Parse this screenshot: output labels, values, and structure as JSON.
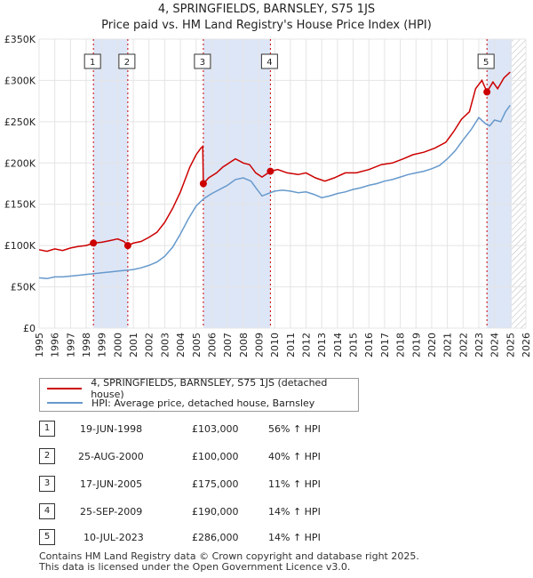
{
  "title_line1": "4, SPRINGFIELDS, BARNSLEY, S75 1JS",
  "title_line2": "Price paid vs. HM Land Registry's House Price Index (HPI)",
  "colors": {
    "price": "#cc0000",
    "hpi": "#6699cc",
    "shade": "#dde6f7",
    "hatch": "#c0c0c0",
    "grid": "#e4e4e4"
  },
  "chart_data": {
    "type": "line",
    "title": "Price paid vs. HM Land Registry's House Price Index (HPI)",
    "xlim": [
      1995,
      2026
    ],
    "ylim": [
      0,
      350000
    ],
    "x_ticks": [
      "1995",
      "1996",
      "1997",
      "1998",
      "1999",
      "2000",
      "2001",
      "2002",
      "2003",
      "2004",
      "2005",
      "2006",
      "2007",
      "2008",
      "2009",
      "2010",
      "2011",
      "2012",
      "2013",
      "2014",
      "2015",
      "2016",
      "2017",
      "2018",
      "2019",
      "2020",
      "2021",
      "2022",
      "2023",
      "2024",
      "2025",
      "2026"
    ],
    "y_ticks": [
      {
        "value": 0,
        "label": "£0"
      },
      {
        "value": 50000,
        "label": "£50K"
      },
      {
        "value": 100000,
        "label": "£100K"
      },
      {
        "value": 150000,
        "label": "£150K"
      },
      {
        "value": 200000,
        "label": "£200K"
      },
      {
        "value": 250000,
        "label": "£250K"
      },
      {
        "value": 300000,
        "label": "£300K"
      },
      {
        "value": 350000,
        "label": "£350K"
      }
    ],
    "series": [
      {
        "name": "4, SPRINGFIELDS, BARNSLEY, S75 1JS (detached house)",
        "color": "#cc0000",
        "points": [
          [
            1995.0,
            95000
          ],
          [
            1995.5,
            93000
          ],
          [
            1996.0,
            96000
          ],
          [
            1996.5,
            94000
          ],
          [
            1997.0,
            97000
          ],
          [
            1997.5,
            99000
          ],
          [
            1998.0,
            100000
          ],
          [
            1998.46,
            103000
          ],
          [
            1999.0,
            104000
          ],
          [
            1999.5,
            106000
          ],
          [
            2000.0,
            108000
          ],
          [
            2000.4,
            105000
          ],
          [
            2000.65,
            100000
          ],
          [
            2001.0,
            103000
          ],
          [
            2001.5,
            105000
          ],
          [
            2002.0,
            110000
          ],
          [
            2002.5,
            116000
          ],
          [
            2003.0,
            128000
          ],
          [
            2003.5,
            145000
          ],
          [
            2004.0,
            165000
          ],
          [
            2004.3,
            180000
          ],
          [
            2004.6,
            195000
          ],
          [
            2005.0,
            210000
          ],
          [
            2005.3,
            218000
          ],
          [
            2005.42,
            220000
          ],
          [
            2005.46,
            175000
          ],
          [
            2005.8,
            182000
          ],
          [
            2006.3,
            188000
          ],
          [
            2006.7,
            195000
          ],
          [
            2007.1,
            200000
          ],
          [
            2007.5,
            205000
          ],
          [
            2008.0,
            200000
          ],
          [
            2008.4,
            198000
          ],
          [
            2008.8,
            188000
          ],
          [
            2009.2,
            183000
          ],
          [
            2009.73,
            190000
          ],
          [
            2010.2,
            192000
          ],
          [
            2010.8,
            188000
          ],
          [
            2011.5,
            186000
          ],
          [
            2012.0,
            188000
          ],
          [
            2012.6,
            182000
          ],
          [
            2013.2,
            178000
          ],
          [
            2013.8,
            182000
          ],
          [
            2014.5,
            188000
          ],
          [
            2015.2,
            188000
          ],
          [
            2016.0,
            192000
          ],
          [
            2016.8,
            198000
          ],
          [
            2017.5,
            200000
          ],
          [
            2018.2,
            205000
          ],
          [
            2018.8,
            210000
          ],
          [
            2019.5,
            213000
          ],
          [
            2020.2,
            218000
          ],
          [
            2020.9,
            225000
          ],
          [
            2021.4,
            238000
          ],
          [
            2021.9,
            253000
          ],
          [
            2022.4,
            262000
          ],
          [
            2022.8,
            290000
          ],
          [
            2023.2,
            300000
          ],
          [
            2023.52,
            286000
          ],
          [
            2023.9,
            298000
          ],
          [
            2024.2,
            290000
          ],
          [
            2024.6,
            303000
          ],
          [
            2025.0,
            310000
          ]
        ]
      },
      {
        "name": "HPI: Average price, detached house, Barnsley",
        "color": "#6699cc",
        "points": [
          [
            1995.0,
            61000
          ],
          [
            1995.5,
            60000
          ],
          [
            1996.0,
            62000
          ],
          [
            1996.5,
            62000
          ],
          [
            1997.0,
            63000
          ],
          [
            1997.5,
            64000
          ],
          [
            1998.0,
            65000
          ],
          [
            1998.5,
            66000
          ],
          [
            1999.0,
            67000
          ],
          [
            1999.5,
            68000
          ],
          [
            2000.0,
            69000
          ],
          [
            2000.5,
            70000
          ],
          [
            2001.0,
            71000
          ],
          [
            2001.5,
            73000
          ],
          [
            2002.0,
            76000
          ],
          [
            2002.5,
            80000
          ],
          [
            2003.0,
            87000
          ],
          [
            2003.5,
            98000
          ],
          [
            2004.0,
            114000
          ],
          [
            2004.5,
            132000
          ],
          [
            2005.0,
            148000
          ],
          [
            2005.5,
            157000
          ],
          [
            2006.0,
            163000
          ],
          [
            2006.5,
            168000
          ],
          [
            2007.0,
            173000
          ],
          [
            2007.5,
            180000
          ],
          [
            2008.0,
            182000
          ],
          [
            2008.5,
            178000
          ],
          [
            2008.8,
            170000
          ],
          [
            2009.2,
            160000
          ],
          [
            2009.6,
            163000
          ],
          [
            2010.0,
            166000
          ],
          [
            2010.5,
            167000
          ],
          [
            2011.0,
            166000
          ],
          [
            2011.5,
            164000
          ],
          [
            2012.0,
            165000
          ],
          [
            2012.5,
            162000
          ],
          [
            2013.0,
            158000
          ],
          [
            2013.5,
            160000
          ],
          [
            2014.0,
            163000
          ],
          [
            2014.5,
            165000
          ],
          [
            2015.0,
            168000
          ],
          [
            2015.5,
            170000
          ],
          [
            2016.0,
            173000
          ],
          [
            2016.5,
            175000
          ],
          [
            2017.0,
            178000
          ],
          [
            2017.5,
            180000
          ],
          [
            2018.0,
            183000
          ],
          [
            2018.5,
            186000
          ],
          [
            2019.0,
            188000
          ],
          [
            2019.5,
            190000
          ],
          [
            2020.0,
            193000
          ],
          [
            2020.5,
            197000
          ],
          [
            2021.0,
            205000
          ],
          [
            2021.5,
            215000
          ],
          [
            2022.0,
            228000
          ],
          [
            2022.5,
            240000
          ],
          [
            2023.0,
            255000
          ],
          [
            2023.4,
            248000
          ],
          [
            2023.7,
            245000
          ],
          [
            2024.0,
            252000
          ],
          [
            2024.4,
            250000
          ],
          [
            2024.7,
            262000
          ],
          [
            2025.0,
            270000
          ]
        ]
      }
    ],
    "transactions": [
      {
        "n": "1",
        "x": 1998.46,
        "y": 103000
      },
      {
        "n": "2",
        "x": 2000.65,
        "y": 100000
      },
      {
        "n": "3",
        "x": 2005.46,
        "y": 175000
      },
      {
        "n": "4",
        "x": 2009.73,
        "y": 190000
      },
      {
        "n": "5",
        "x": 2023.52,
        "y": 286000
      }
    ],
    "shaded_periods": [
      [
        1998.46,
        2000.65
      ],
      [
        2005.46,
        2009.73
      ],
      [
        2023.52,
        2025.1
      ]
    ],
    "hatch_from": 2025.1
  },
  "legend": {
    "price_label": "4, SPRINGFIELDS, BARNSLEY, S75 1JS (detached house)",
    "hpi_label": "HPI: Average price, detached house, Barnsley"
  },
  "table": [
    {
      "n": "1",
      "date": "19-JUN-1998",
      "price": "£103,000",
      "hpi": "56% ↑ HPI"
    },
    {
      "n": "2",
      "date": "25-AUG-2000",
      "price": "£100,000",
      "hpi": "40% ↑ HPI"
    },
    {
      "n": "3",
      "date": "17-JUN-2005",
      "price": "£175,000",
      "hpi": "11% ↑ HPI"
    },
    {
      "n": "4",
      "date": "25-SEP-2009",
      "price": "£190,000",
      "hpi": "14% ↑ HPI"
    },
    {
      "n": "5",
      "date": "10-JUL-2023",
      "price": "£286,000",
      "hpi": "14% ↑ HPI"
    }
  ],
  "footer": {
    "line1": "Contains HM Land Registry data © Crown copyright and database right 2025.",
    "line2": "This data is licensed under the Open Government Licence v3.0."
  }
}
